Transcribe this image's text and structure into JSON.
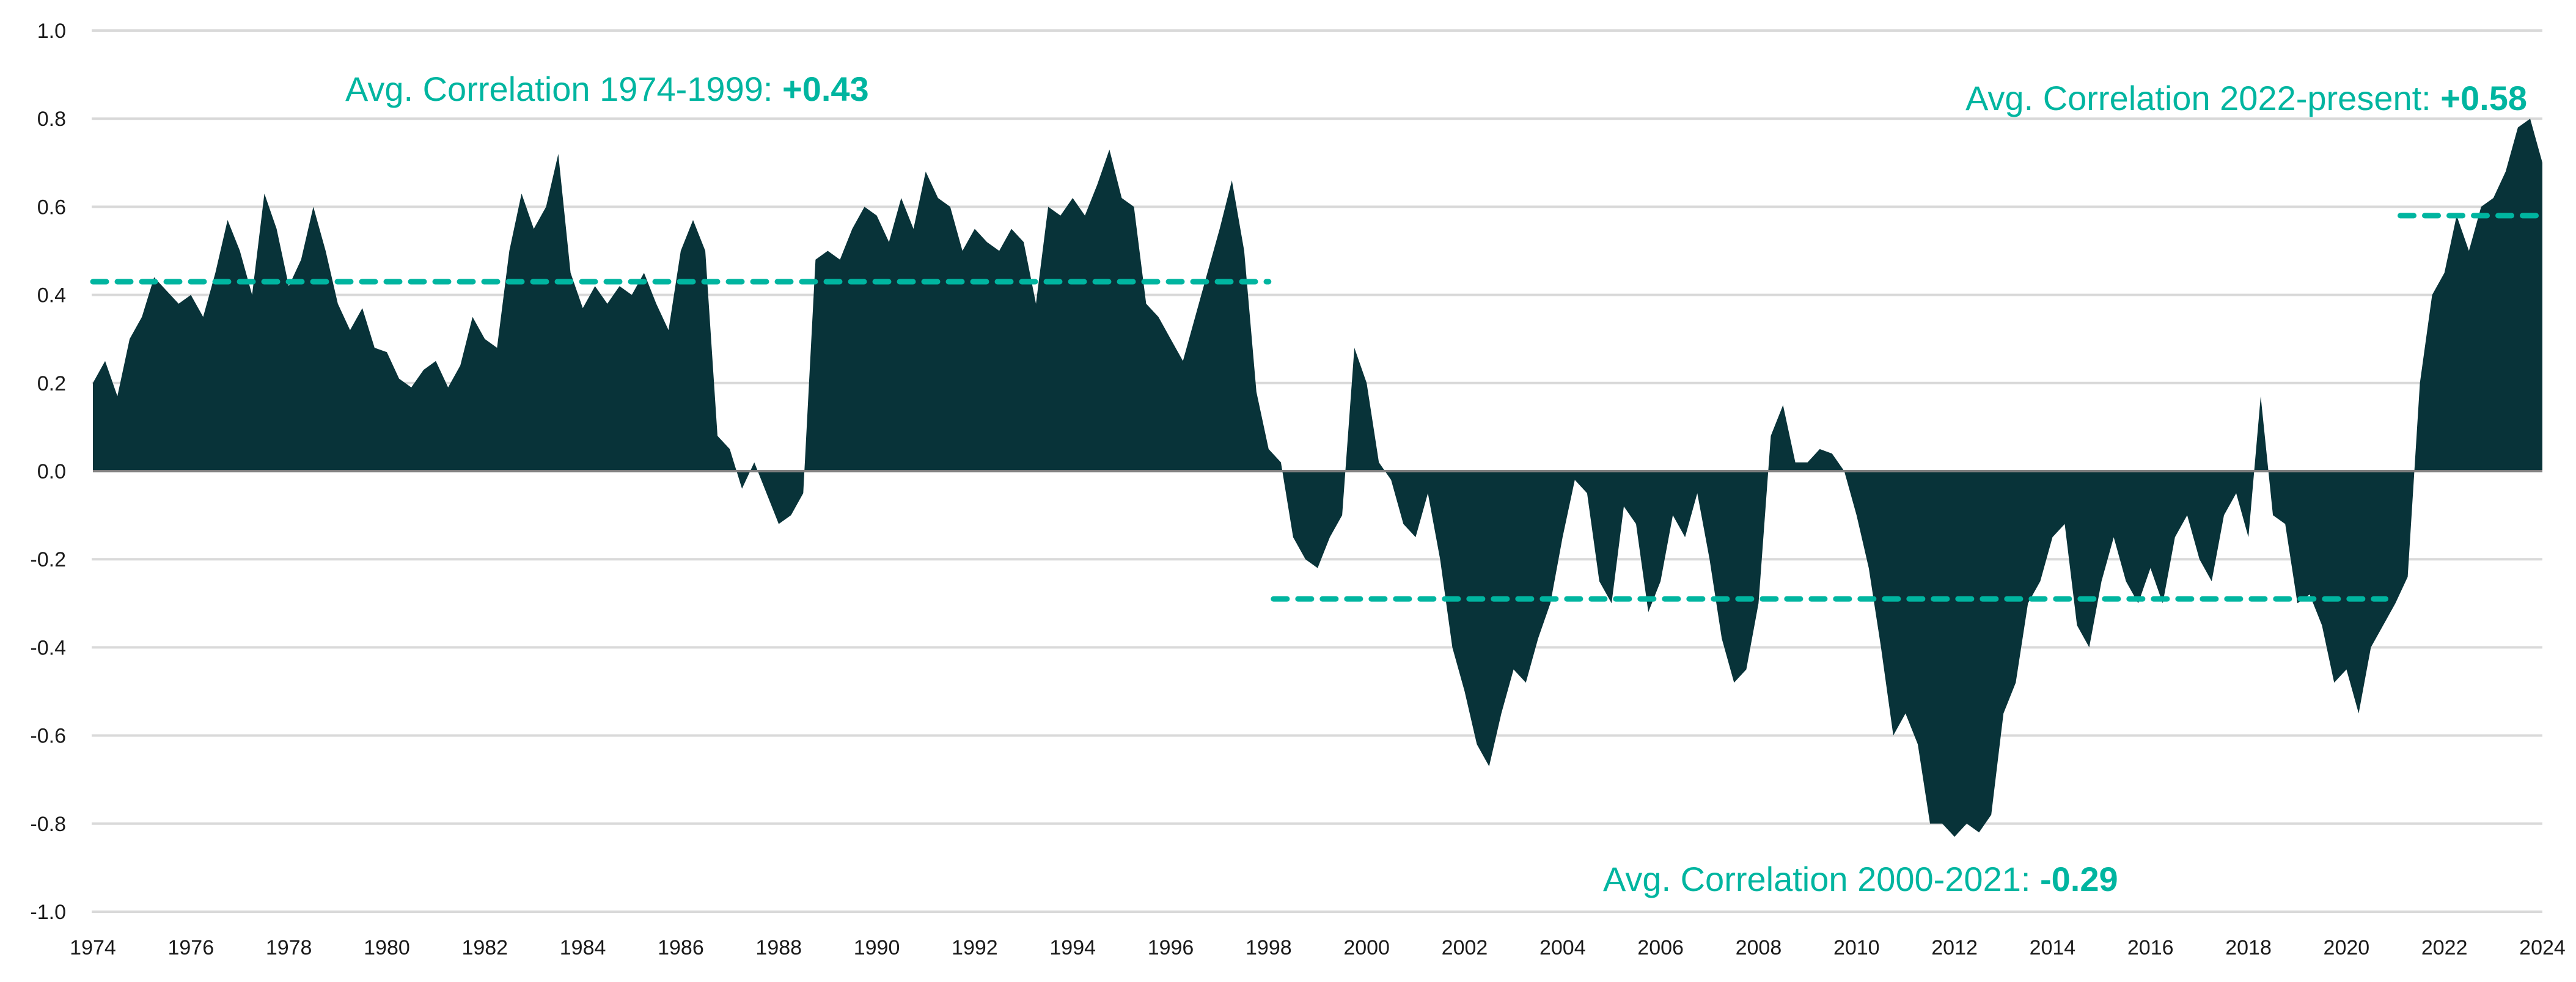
{
  "chart_data": {
    "type": "area",
    "title": "",
    "xlabel": "",
    "ylabel": "",
    "xlim": [
      1974,
      2024
    ],
    "ylim": [
      -1.0,
      1.0
    ],
    "grid": true,
    "x_ticks": [
      "1974",
      "1976",
      "1978",
      "1980",
      "1982",
      "1984",
      "1986",
      "1988",
      "1990",
      "1992",
      "1994",
      "1996",
      "1998",
      "2000",
      "2002",
      "2004",
      "2006",
      "2008",
      "2010",
      "2012",
      "2014",
      "2016",
      "2018",
      "2020",
      "2022",
      "2024"
    ],
    "y_ticks": [
      "1.0",
      "0.8",
      "0.6",
      "0.4",
      "0.2",
      "0.0",
      "-0.2",
      "-0.4",
      "-0.6",
      "-0.8",
      "-1.0"
    ],
    "y_tick_values": [
      1.0,
      0.8,
      0.6,
      0.4,
      0.2,
      0.0,
      -0.2,
      -0.4,
      -0.6,
      -0.8,
      -1.0
    ],
    "x": [
      1974,
      1974.25,
      1974.5,
      1974.75,
      1975,
      1975.25,
      1975.5,
      1975.75,
      1976,
      1976.25,
      1976.5,
      1976.75,
      1977,
      1977.25,
      1977.5,
      1977.75,
      1978,
      1978.25,
      1978.5,
      1978.75,
      1979,
      1979.25,
      1979.5,
      1979.75,
      1980,
      1980.25,
      1980.5,
      1980.75,
      1981,
      1981.25,
      1981.5,
      1981.75,
      1982,
      1982.25,
      1982.5,
      1982.75,
      1983,
      1983.25,
      1983.5,
      1983.75,
      1984,
      1984.25,
      1984.5,
      1984.75,
      1985,
      1985.25,
      1985.5,
      1985.75,
      1986,
      1986.25,
      1986.5,
      1986.75,
      1987,
      1987.25,
      1987.5,
      1987.75,
      1988,
      1988.25,
      1988.5,
      1988.75,
      1989,
      1989.25,
      1989.5,
      1989.75,
      1990,
      1990.25,
      1990.5,
      1990.75,
      1991,
      1991.25,
      1991.5,
      1991.75,
      1992,
      1992.25,
      1992.5,
      1992.75,
      1993,
      1993.25,
      1993.5,
      1993.75,
      1994,
      1994.25,
      1994.5,
      1994.75,
      1995,
      1995.25,
      1995.5,
      1995.75,
      1996,
      1996.25,
      1996.5,
      1996.75,
      1997,
      1997.25,
      1997.5,
      1997.75,
      1998,
      1998.25,
      1998.5,
      1998.75,
      1999,
      1999.25,
      1999.5,
      1999.75,
      2000,
      2000.25,
      2000.5,
      2000.75,
      2001,
      2001.25,
      2001.5,
      2001.75,
      2002,
      2002.25,
      2002.5,
      2002.75,
      2003,
      2003.25,
      2003.5,
      2003.75,
      2004,
      2004.25,
      2004.5,
      2004.75,
      2005,
      2005.25,
      2005.5,
      2005.75,
      2006,
      2006.25,
      2006.5,
      2006.75,
      2007,
      2007.25,
      2007.5,
      2007.75,
      2008,
      2008.25,
      2008.5,
      2008.75,
      2009,
      2009.25,
      2009.5,
      2009.75,
      2010,
      2010.25,
      2010.5,
      2010.75,
      2011,
      2011.25,
      2011.5,
      2011.75,
      2012,
      2012.25,
      2012.5,
      2012.75,
      2013,
      2013.25,
      2013.5,
      2013.75,
      2014,
      2014.25,
      2014.5,
      2014.75,
      2015,
      2015.25,
      2015.5,
      2015.75,
      2016,
      2016.25,
      2016.5,
      2016.75,
      2017,
      2017.25,
      2017.5,
      2017.75,
      2018,
      2018.25,
      2018.5,
      2018.75,
      2019,
      2019.25,
      2019.5,
      2019.75,
      2020,
      2020.25,
      2020.5,
      2020.75,
      2021,
      2021.25,
      2021.5,
      2021.75,
      2022,
      2022.25,
      2022.5,
      2022.75,
      2023,
      2023.25,
      2023.5,
      2023.75,
      2024
    ],
    "values": [
      0.2,
      0.25,
      0.17,
      0.3,
      0.35,
      0.44,
      0.41,
      0.38,
      0.4,
      0.35,
      0.45,
      0.57,
      0.5,
      0.4,
      0.63,
      0.55,
      0.42,
      0.48,
      0.6,
      0.5,
      0.38,
      0.32,
      0.37,
      0.28,
      0.27,
      0.21,
      0.19,
      0.23,
      0.25,
      0.19,
      0.24,
      0.35,
      0.3,
      0.28,
      0.5,
      0.63,
      0.55,
      0.6,
      0.72,
      0.45,
      0.37,
      0.42,
      0.38,
      0.42,
      0.4,
      0.45,
      0.38,
      0.32,
      0.5,
      0.57,
      0.5,
      0.08,
      0.05,
      -0.04,
      0.02,
      -0.05,
      -0.12,
      -0.1,
      -0.05,
      0.48,
      0.5,
      0.48,
      0.55,
      0.6,
      0.58,
      0.52,
      0.62,
      0.55,
      0.68,
      0.62,
      0.6,
      0.5,
      0.55,
      0.52,
      0.5,
      0.55,
      0.52,
      0.38,
      0.6,
      0.58,
      0.62,
      0.58,
      0.65,
      0.73,
      0.62,
      0.6,
      0.38,
      0.35,
      0.3,
      0.25,
      0.35,
      0.45,
      0.55,
      0.66,
      0.5,
      0.18,
      0.05,
      0.02,
      -0.15,
      -0.2,
      -0.22,
      -0.15,
      -0.1,
      0.28,
      0.2,
      0.02,
      -0.02,
      -0.12,
      -0.15,
      -0.05,
      -0.2,
      -0.4,
      -0.5,
      -0.62,
      -0.67,
      -0.55,
      -0.45,
      -0.48,
      -0.38,
      -0.3,
      -0.15,
      -0.02,
      -0.05,
      -0.25,
      -0.3,
      -0.08,
      -0.12,
      -0.32,
      -0.25,
      -0.1,
      -0.15,
      -0.05,
      -0.2,
      -0.38,
      -0.48,
      -0.45,
      -0.3,
      0.08,
      0.15,
      0.02,
      0.02,
      0.05,
      0.04,
      0.0,
      -0.1,
      -0.22,
      -0.4,
      -0.6,
      -0.55,
      -0.62,
      -0.8,
      -0.8,
      -0.83,
      -0.8,
      -0.82,
      -0.78,
      -0.55,
      -0.48,
      -0.3,
      -0.25,
      -0.15,
      -0.12,
      -0.35,
      -0.4,
      -0.25,
      -0.15,
      -0.25,
      -0.3,
      -0.22,
      -0.3,
      -0.15,
      -0.1,
      -0.2,
      -0.25,
      -0.1,
      -0.05,
      -0.15,
      0.17,
      -0.1,
      -0.12,
      -0.3,
      -0.28,
      -0.35,
      -0.48,
      -0.45,
      -0.55,
      -0.4,
      -0.35,
      -0.3,
      -0.24,
      0.2,
      0.4,
      0.45,
      0.58,
      0.5,
      0.6,
      0.62,
      0.68,
      0.78,
      0.8,
      0.7
    ],
    "averages": [
      {
        "label": "Avg. Correlation 1974-1999: ",
        "value_label": "+0.43",
        "value": 0.43,
        "from": 1974,
        "to": 1998
      },
      {
        "label": "Avg. Correlation 2000-2021: ",
        "value_label": "-0.29",
        "value": -0.29,
        "from": 1998.1,
        "to": 2020.8
      },
      {
        "label": "Avg. Correlation 2022-present: ",
        "value_label": "+0.58",
        "value": 0.58,
        "from": 2021.1,
        "to": 2024
      }
    ],
    "colors": {
      "area": "#083339",
      "average": "#00b5a0",
      "grid": "#d9d9d9",
      "zero_line": "#808080",
      "tick_text": "#1a1a1a"
    }
  }
}
